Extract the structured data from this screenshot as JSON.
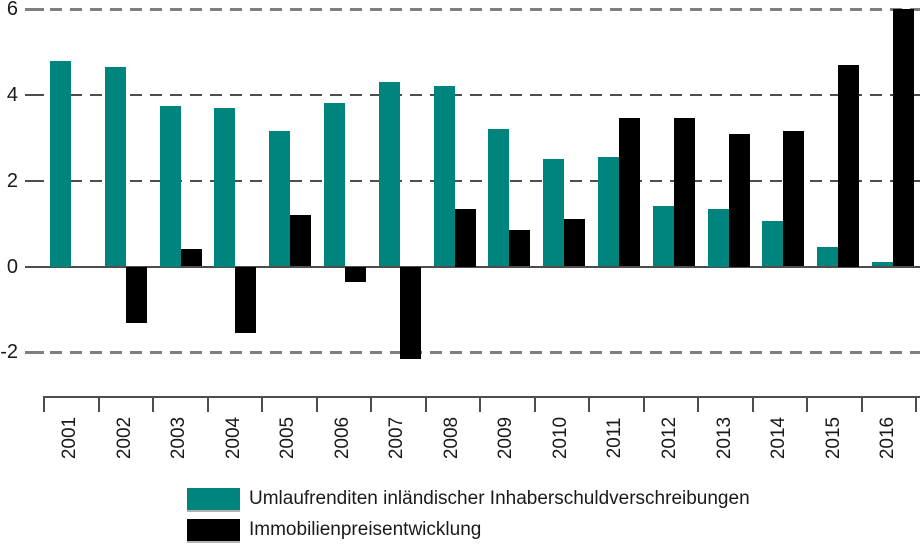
{
  "chart_data": {
    "type": "bar",
    "title": "",
    "categories": [
      "2001",
      "2002",
      "2003",
      "2004",
      "2005",
      "2006",
      "2007",
      "2008",
      "2009",
      "2010",
      "2011",
      "2012",
      "2013",
      "2014",
      "2015",
      "2016"
    ],
    "series": [
      {
        "name": "Umlaufrenditen inländischer Inhaberschuldverschreibungen",
        "color": "#00847E",
        "values": [
          4.8,
          4.65,
          3.75,
          3.7,
          3.15,
          3.8,
          4.3,
          4.2,
          3.2,
          2.5,
          2.55,
          1.4,
          1.35,
          1.05,
          0.45,
          0.1
        ]
      },
      {
        "name": "Immobilienpreisentwicklung",
        "color": "#000000",
        "values": [
          null,
          -1.3,
          0.4,
          -1.55,
          1.2,
          -0.35,
          -2.15,
          1.35,
          0.85,
          1.1,
          3.45,
          3.45,
          3.1,
          3.15,
          4.7,
          6.0
        ]
      }
    ],
    "xlabel": "",
    "ylabel": "",
    "ylim": [
      -2,
      6
    ],
    "yticks": [
      6,
      4,
      2,
      0,
      -2
    ],
    "grid": "horizontal-dashed",
    "legend_position": "bottom"
  }
}
